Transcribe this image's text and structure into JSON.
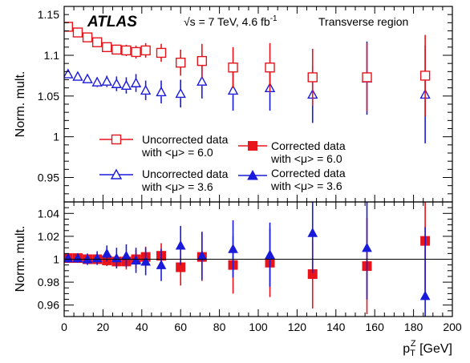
{
  "chart_data": [
    {
      "type": "scatter",
      "panel": "top",
      "ylabel": "Norm. mult.",
      "xlim": [
        0,
        200
      ],
      "ylim": [
        0.92,
        1.16
      ],
      "yticks": [
        0.95,
        1,
        1.05,
        1.1,
        1.15
      ],
      "ytick_labels": [
        "0.95",
        "1",
        "1.05",
        "1.1",
        "1.15"
      ],
      "annotations": {
        "experiment": "ATLAS",
        "energy": "√s = 7 TeV, 4.6 fb",
        "energy_sup": "-1",
        "region": "Transverse region"
      },
      "legend": [
        {
          "series": 0,
          "line1": "Uncorrected data",
          "line2": "with <μ> = 6.0"
        },
        {
          "series": 1,
          "line1": "Uncorrected data",
          "line2": "with <μ> = 3.6"
        },
        {
          "series": 2,
          "line1": "Corrected data",
          "line2": "with <μ> = 6.0"
        },
        {
          "series": 3,
          "line1": "Corrected data",
          "line2": "with <μ> = 3.6"
        }
      ],
      "series": [
        {
          "color": "#e8141b",
          "marker": "square-open",
          "x": [
            2,
            7,
            12,
            17,
            22,
            27,
            32,
            37,
            42,
            50,
            60,
            71,
            87,
            106,
            128,
            156,
            186
          ],
          "y": [
            1.135,
            1.128,
            1.122,
            1.116,
            1.11,
            1.107,
            1.106,
            1.104,
            1.106,
            1.103,
            1.091,
            1.093,
            1.085,
            1.085,
            1.073,
            1.073,
            1.075
          ],
          "err": [
            0.004,
            0.004,
            0.004,
            0.004,
            0.005,
            0.006,
            0.007,
            0.008,
            0.009,
            0.011,
            0.016,
            0.021,
            0.025,
            0.03,
            0.035,
            0.042,
            0.05
          ]
        },
        {
          "color": "#1a1adb",
          "marker": "triangle-open",
          "x": [
            2,
            7,
            12,
            17,
            22,
            27,
            32,
            37,
            42,
            50,
            60,
            71,
            87,
            106,
            128,
            156,
            186
          ],
          "y": [
            1.077,
            1.074,
            1.071,
            1.067,
            1.068,
            1.065,
            1.063,
            1.066,
            1.057,
            1.055,
            1.053,
            1.068,
            1.057,
            1.06,
            1.052,
            1.072,
            1.052
          ],
          "err": [
            0.004,
            0.004,
            0.005,
            0.006,
            0.007,
            0.009,
            0.01,
            0.011,
            0.012,
            0.014,
            0.017,
            0.021,
            0.025,
            0.028,
            0.035,
            0.045,
            0.06
          ]
        },
        {
          "color": "#e8141b",
          "marker": "square-filled",
          "x": [
            2,
            7,
            12,
            17,
            22,
            27,
            32,
            37,
            42,
            50,
            60,
            71,
            87,
            106,
            128,
            156,
            186
          ],
          "y": [
            1.001,
            1.001,
            1.0,
            1.0,
            0.999,
            0.998,
            0.998,
            1.0,
            1.002,
            1.003,
            0.993,
            1.002,
            0.995,
            0.997,
            0.987,
            0.994,
            1.016
          ],
          "err": [
            0.004,
            0.004,
            0.004,
            0.004,
            0.005,
            0.006,
            0.007,
            0.008,
            0.009,
            0.011,
            0.016,
            0.021,
            0.025,
            0.03,
            0.03,
            0.042,
            0.05
          ]
        },
        {
          "color": "#1a1adb",
          "marker": "triangle-filled",
          "x": [
            2,
            7,
            12,
            17,
            22,
            27,
            32,
            37,
            42,
            50,
            60,
            71,
            87,
            106,
            128,
            156,
            186
          ],
          "y": [
            1.001,
            1.001,
            1.0,
            1.001,
            1.005,
            1.001,
            1.003,
            0.999,
            0.998,
            0.995,
            1.012,
            1.003,
            1.009,
            1.004,
            1.023,
            1.01,
            0.968
          ],
          "err": [
            0.004,
            0.004,
            0.005,
            0.006,
            0.007,
            0.009,
            0.01,
            0.011,
            0.012,
            0.014,
            0.017,
            0.021,
            0.025,
            0.028,
            0.035,
            0.045,
            0.06
          ]
        }
      ]
    },
    {
      "type": "scatter",
      "panel": "bottom",
      "ylabel": "Norm. mult.",
      "xlabel": "p",
      "xlabel_sub": "T",
      "xlabel_sup": "Z",
      "xlabel_unit": " [GeV]",
      "xlim": [
        0,
        200
      ],
      "ylim": [
        0.95,
        1.05
      ],
      "reference_line": 1,
      "xticks": [
        0,
        20,
        40,
        60,
        80,
        100,
        120,
        140,
        160,
        180,
        200
      ],
      "xtick_labels": [
        "0",
        "20",
        "40",
        "60",
        "80",
        "100",
        "120",
        "140",
        "160",
        "180",
        "200"
      ],
      "yticks": [
        0.96,
        0.98,
        1,
        1.02,
        1.04
      ],
      "ytick_labels": [
        "0.96",
        "0.98",
        "1",
        "1.02",
        "1.04"
      ]
    }
  ]
}
